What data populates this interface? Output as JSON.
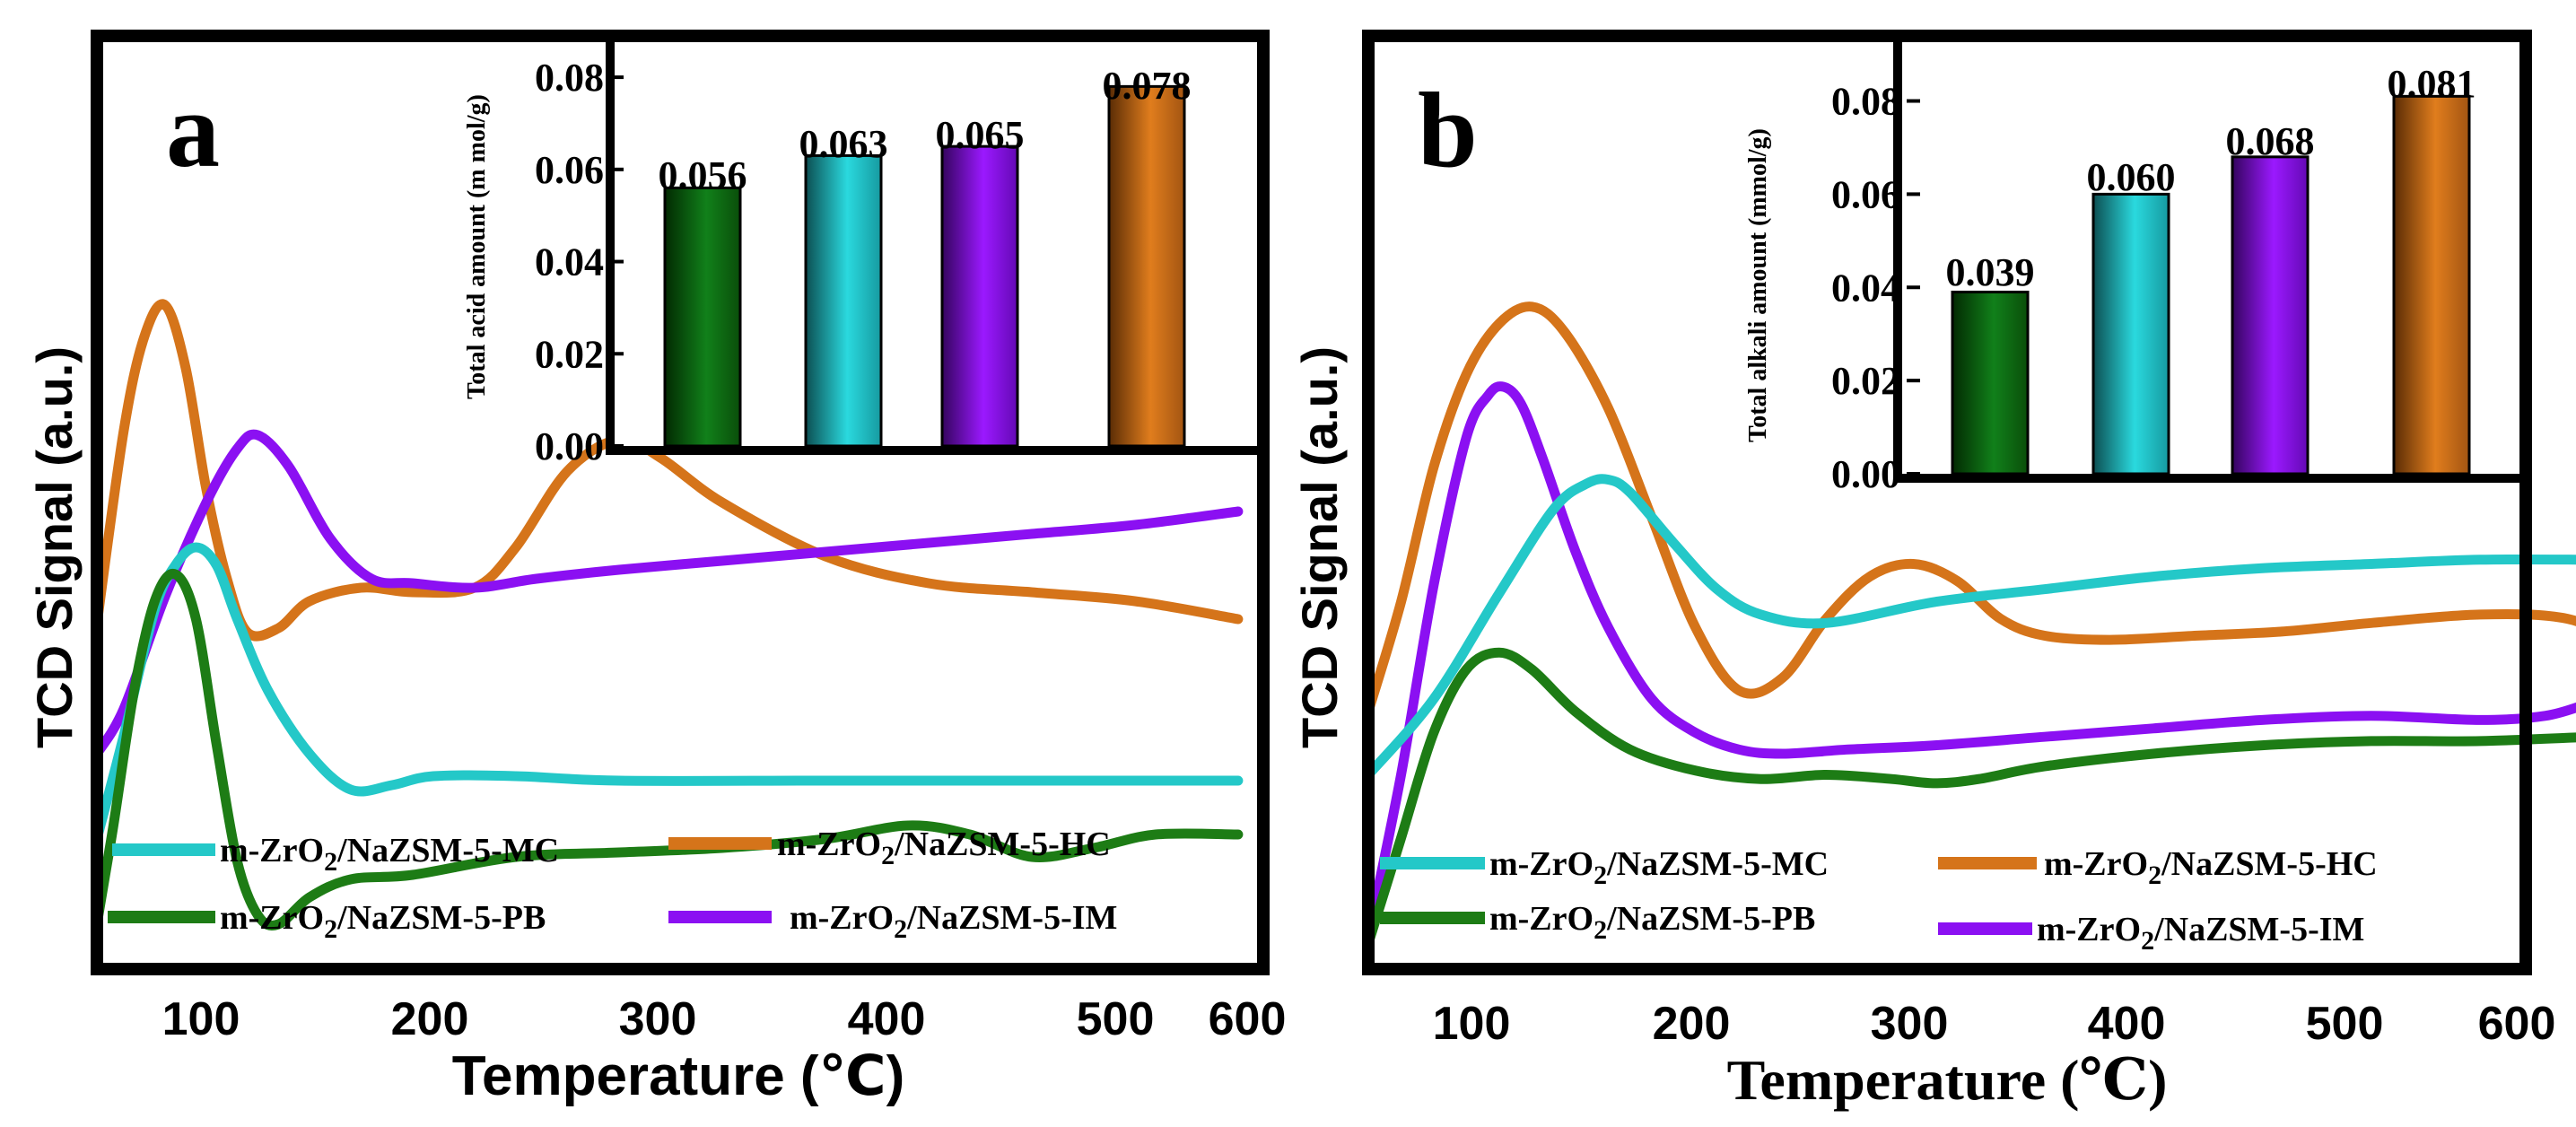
{
  "chart_data": [
    {
      "type": "line",
      "panel": "a",
      "xlabel": "Temperature (℃)",
      "ylabel": "TCD Signal (a.u.)",
      "xlim": [
        47,
        600
      ],
      "xticks": [
        100,
        200,
        300,
        400,
        500,
        600
      ],
      "series": [
        {
          "name": "m-ZrO2/NaZSM-5-HC",
          "color": "#d5741a",
          "x": [
            47,
            60,
            70,
            80,
            90,
            100,
            110,
            120,
            135,
            150,
            175,
            200,
            230,
            250,
            275,
            300,
            320,
            350,
            400,
            450,
            500,
            550,
            600
          ],
          "y": [
            0.15,
            0.58,
            0.79,
            0.86,
            0.72,
            0.45,
            0.25,
            0.13,
            0.14,
            0.2,
            0.23,
            0.22,
            0.23,
            0.32,
            0.49,
            0.56,
            0.52,
            0.42,
            0.3,
            0.24,
            0.22,
            0.2,
            0.16
          ]
        },
        {
          "name": "m-ZrO2/NaZSM-5-IM",
          "color": "#8b10f2",
          "x": [
            47,
            60,
            80,
            100,
            115,
            125,
            140,
            160,
            180,
            200,
            230,
            260,
            300,
            350,
            400,
            450,
            500,
            550,
            600
          ],
          "y": [
            -0.14,
            -0.04,
            0.21,
            0.42,
            0.54,
            0.57,
            0.5,
            0.34,
            0.25,
            0.24,
            0.23,
            0.25,
            0.27,
            0.29,
            0.31,
            0.33,
            0.35,
            0.37,
            0.4
          ]
        },
        {
          "name": "m-ZrO2/NaZSM-5-MC",
          "color": "#24c8c8",
          "x": [
            47,
            60,
            75,
            85,
            95,
            105,
            115,
            130,
            150,
            170,
            190,
            210,
            250,
            300,
            400,
            500,
            600
          ],
          "y": [
            -0.33,
            -0.1,
            0.18,
            0.28,
            0.32,
            0.28,
            0.16,
            0.0,
            -0.14,
            -0.22,
            -0.21,
            -0.19,
            -0.19,
            -0.2,
            -0.2,
            -0.2,
            -0.2
          ]
        },
        {
          "name": "m-ZrO2/NaZSM-5-PB",
          "color": "#1d7c15",
          "x": [
            47,
            55,
            65,
            75,
            85,
            95,
            105,
            115,
            125,
            135,
            150,
            170,
            200,
            250,
            300,
            350,
            400,
            440,
            470,
            500,
            530,
            560,
            600
          ],
          "y": [
            -0.52,
            -0.3,
            0.0,
            0.2,
            0.26,
            0.16,
            -0.12,
            -0.38,
            -0.5,
            -0.52,
            -0.46,
            -0.42,
            -0.41,
            -0.37,
            -0.36,
            -0.35,
            -0.33,
            -0.3,
            -0.32,
            -0.37,
            -0.35,
            -0.32,
            -0.32
          ]
        }
      ],
      "legend": [
        "m-ZrO2/NaZSM-5-MC",
        "m-ZrO2/NaZSM-5-HC",
        "m-ZrO2/NaZSM-5-PB",
        "m-ZrO2/NaZSM-5-IM"
      ],
      "inset": {
        "type": "bar",
        "ylabel": "Total acid amount (m mol/g)",
        "ylim": [
          0,
          0.088
        ],
        "yticks": [
          "0.00",
          "0.02",
          "0.04",
          "0.06",
          "0.08"
        ],
        "values": [
          0.056,
          0.063,
          0.065,
          0.078
        ],
        "labels": [
          "0.056",
          "0.063",
          "0.065",
          "0.078"
        ],
        "colors": [
          "#0f6e0f",
          "#22c3c9",
          "#8a0ef0",
          "#d5741a"
        ]
      }
    },
    {
      "type": "line",
      "panel": "b",
      "xlabel": "Temperature (℃)",
      "ylabel": "TCD Signal (a.u.)",
      "xlim": [
        40,
        600
      ],
      "xticks": [
        100,
        200,
        300,
        400,
        500,
        600
      ],
      "series": [
        {
          "name": "m-ZrO2/NaZSM-5-HC",
          "color": "#d5741a",
          "x": [
            40,
            55,
            70,
            85,
            100,
            115,
            130,
            150,
            170,
            190,
            210,
            230,
            250,
            270,
            290,
            310,
            330,
            350,
            380,
            420,
            460,
            500,
            550,
            590,
            615
          ],
          "y": [
            0.1,
            0.36,
            0.68,
            0.9,
            1.02,
            1.06,
            1.0,
            0.82,
            0.56,
            0.3,
            0.15,
            0.18,
            0.32,
            0.42,
            0.45,
            0.41,
            0.32,
            0.28,
            0.27,
            0.28,
            0.29,
            0.31,
            0.33,
            0.32,
            0.26
          ]
        },
        {
          "name": "m-ZrO2/NaZSM-5-IM",
          "color": "#8b10f2",
          "x": [
            40,
            55,
            70,
            85,
            95,
            102,
            110,
            120,
            135,
            150,
            170,
            190,
            210,
            230,
            260,
            300,
            350,
            400,
            450,
            500,
            550,
            580,
            600
          ],
          "y": [
            -0.43,
            -0.05,
            0.4,
            0.75,
            0.85,
            0.87,
            0.83,
            0.7,
            0.48,
            0.3,
            0.13,
            0.05,
            0.01,
            0.0,
            0.01,
            0.02,
            0.04,
            0.06,
            0.08,
            0.09,
            0.08,
            0.09,
            0.12
          ]
        },
        {
          "name": "m-ZrO2/NaZSM-5-MC",
          "color": "#24c8c8",
          "x": [
            40,
            70,
            100,
            125,
            140,
            150,
            160,
            180,
            200,
            220,
            250,
            300,
            350,
            400,
            450,
            500,
            550,
            600
          ],
          "y": [
            -0.05,
            0.13,
            0.38,
            0.58,
            0.64,
            0.65,
            0.62,
            0.5,
            0.39,
            0.33,
            0.31,
            0.36,
            0.39,
            0.42,
            0.44,
            0.45,
            0.46,
            0.46
          ]
        },
        {
          "name": "m-ZrO2/NaZSM-5-PB",
          "color": "#1d7c15",
          "x": [
            40,
            55,
            70,
            85,
            100,
            115,
            135,
            160,
            190,
            220,
            250,
            280,
            300,
            320,
            350,
            400,
            450,
            500,
            550,
            600
          ],
          "y": [
            -0.45,
            -0.2,
            0.05,
            0.2,
            0.24,
            0.2,
            0.1,
            0.01,
            -0.04,
            -0.06,
            -0.05,
            -0.06,
            -0.07,
            -0.06,
            -0.03,
            0.0,
            0.02,
            0.03,
            0.03,
            0.04
          ]
        }
      ],
      "legend": [
        "m-ZrO2/NaZSM-5-MC",
        "m-ZrO2/NaZSM-5-HC",
        "m-ZrO2/NaZSM-5-PB",
        "m-ZrO2/NaZSM-5-IM"
      ],
      "inset": {
        "type": "bar",
        "ylabel": "Total alkali amount (mmol/g)",
        "ylim": [
          0,
          0.093
        ],
        "yticks": [
          "0.00",
          "0.02",
          "0.04",
          "0.06",
          "0.08"
        ],
        "values": [
          0.039,
          0.06,
          0.068,
          0.081
        ],
        "labels": [
          "0.039",
          "0.060",
          "0.068",
          "0.081"
        ],
        "colors": [
          "#0f6e0f",
          "#22c3c9",
          "#8a0ef0",
          "#d5741a"
        ]
      }
    }
  ],
  "panels": [
    {
      "label": "a",
      "ylabel": "TCD Signal (a.u.)",
      "xlabel": "Temperature (℃)",
      "xticks": [
        "100",
        "200",
        "300",
        "400",
        "500",
        "600"
      ],
      "legend": [
        {
          "prefix": "m-ZrO",
          "sub": "2",
          "suffix": "/NaZSM-5-MC",
          "color": "#24c8c8"
        },
        {
          "prefix": "m-ZrO",
          "sub": "2",
          "suffix": "/NaZSM-5-HC",
          "color": "#d5741a"
        },
        {
          "prefix": "m-ZrO",
          "sub": "2",
          "suffix": "/NaZSM-5-PB",
          "color": "#1d7c15"
        },
        {
          "prefix": "m-ZrO",
          "sub": "2",
          "suffix": "/NaZSM-5-IM",
          "color": "#8b10f2"
        }
      ],
      "inset_ylabel": "Total acid amount (m mol/g)",
      "inset_yticks": [
        "0.00",
        "0.02",
        "0.04",
        "0.06",
        "0.08"
      ],
      "inset_bar_labels": [
        "0.056",
        "0.063",
        "0.065",
        "0.078"
      ]
    },
    {
      "label": "b",
      "ylabel": "TCD Signal (a.u.)",
      "xlabel": "Temperature (℃)",
      "xticks": [
        "100",
        "200",
        "300",
        "400",
        "500",
        "600"
      ],
      "legend": [
        {
          "prefix": "m-ZrO",
          "sub": "2",
          "suffix": "/NaZSM-5-MC",
          "color": "#24c8c8"
        },
        {
          "prefix": "m-ZrO",
          "sub": "2",
          "suffix": "/NaZSM-5-HC",
          "color": "#d5741a"
        },
        {
          "prefix": "m-ZrO",
          "sub": "2",
          "suffix": "/NaZSM-5-PB",
          "color": "#1d7c15"
        },
        {
          "prefix": "m-ZrO",
          "sub": "2",
          "suffix": "/NaZSM-5-IM",
          "color": "#8b10f2"
        }
      ],
      "inset_ylabel": "Total alkali amount (mmol/g)",
      "inset_yticks": [
        "0.00",
        "0.02",
        "0.04",
        "0.06",
        "0.08"
      ],
      "inset_bar_labels": [
        "0.039",
        "0.060",
        "0.068",
        "0.081"
      ]
    }
  ]
}
